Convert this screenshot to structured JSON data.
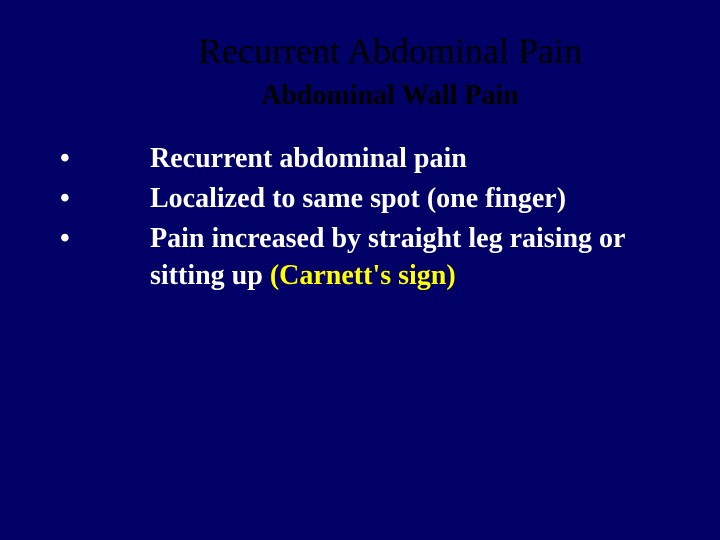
{
  "slide": {
    "background_color": "#000066",
    "title": {
      "text": "Recurrent Abdominal Pain",
      "color": "#000000",
      "font_size": 36,
      "font_weight": "normal"
    },
    "subtitle": {
      "text": "Abdominal Wall Pain",
      "color": "#000000",
      "font_size": 28,
      "font_weight": "bold"
    },
    "bullets": [
      {
        "marker": "•",
        "text": "Recurrent abdominal pain"
      },
      {
        "marker": "•",
        "text": "Localized to same spot (one finger)"
      },
      {
        "marker": "•",
        "text_prefix": "Pain increased by straight leg raising or sitting up  ",
        "text_highlight": "(Carnett's sign)"
      }
    ],
    "bullet_style": {
      "text_color": "#ffffff",
      "highlight_color": "#ffff00",
      "font_size": 28,
      "font_weight": "bold"
    }
  }
}
